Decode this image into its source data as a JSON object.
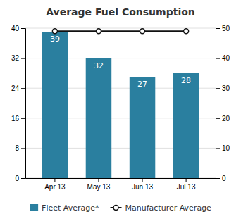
{
  "chart_data": {
    "type": "bar",
    "title": "Average Fuel Consumption",
    "categories": [
      "Apr 13",
      "May 13",
      "Jun 13",
      "Jul 13"
    ],
    "series": [
      {
        "name": "Fleet Average*",
        "type": "bar",
        "color": "#2a7f9f",
        "data_labels": true,
        "values": [
          39,
          32,
          27,
          28
        ]
      },
      {
        "name": "Manufacturer Average",
        "type": "line",
        "color": "#111111",
        "marker": "circle",
        "axis": "y2",
        "values": [
          49,
          49,
          49,
          49
        ]
      }
    ],
    "ylim": [
      0,
      40
    ],
    "yticks": [
      0,
      8,
      16,
      24,
      32,
      40
    ],
    "y2lim": [
      0,
      50
    ],
    "y2ticks": [
      0,
      10,
      20,
      30,
      40,
      50
    ],
    "grid": true,
    "legend": "bottom"
  }
}
